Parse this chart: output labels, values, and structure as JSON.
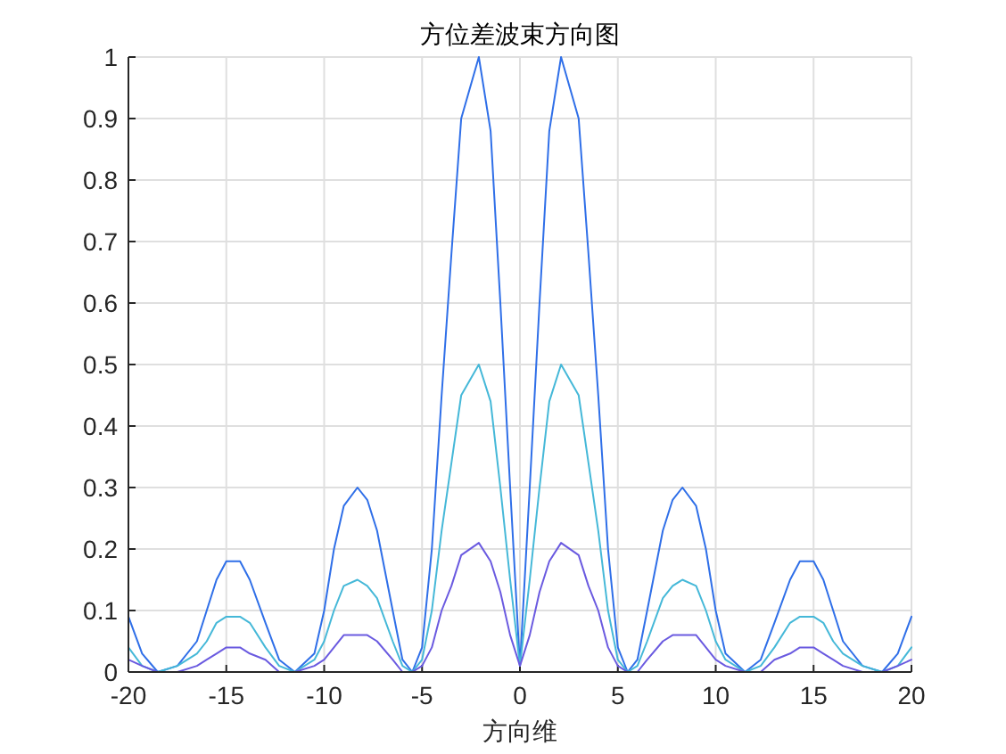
{
  "chart_data": {
    "type": "line",
    "title": "方位差波束方向图",
    "xlabel": "方向维",
    "x": [
      -20,
      -19.3,
      -18.5,
      -17.5,
      -16.5,
      -16,
      -15.5,
      -15,
      -14.3,
      -13.8,
      -13,
      -12.3,
      -11.5,
      -10.5,
      -10,
      -9.5,
      -9,
      -8.3,
      -7.8,
      -7.3,
      -6.5,
      -6,
      -5.5,
      -5,
      -4.5,
      -4,
      -3.5,
      -3,
      -2.1,
      -1.5,
      -1,
      -0.5,
      0,
      0.5,
      1,
      1.5,
      2.1,
      3,
      3.5,
      4,
      4.5,
      5,
      5.5,
      6,
      6.5,
      7.3,
      7.8,
      8.3,
      9,
      9.5,
      10,
      10.5,
      11.5,
      12.3,
      13,
      13.8,
      14.3,
      15,
      15.5,
      16,
      16.5,
      17.5,
      18.5,
      19.3,
      20
    ],
    "series": [
      {
        "color": "#2f6fe8",
        "values": [
          0.09,
          0.03,
          0,
          0.01,
          0.05,
          0.1,
          0.15,
          0.18,
          0.18,
          0.15,
          0.08,
          0.02,
          0,
          0.03,
          0.1,
          0.2,
          0.27,
          0.3,
          0.28,
          0.23,
          0.1,
          0.02,
          0,
          0.04,
          0.2,
          0.45,
          0.68,
          0.9,
          1,
          0.88,
          0.6,
          0.3,
          0.01,
          0.3,
          0.6,
          0.88,
          1,
          0.9,
          0.68,
          0.45,
          0.2,
          0.04,
          0,
          0.02,
          0.1,
          0.23,
          0.28,
          0.3,
          0.27,
          0.2,
          0.1,
          0.03,
          0,
          0.02,
          0.08,
          0.15,
          0.18,
          0.18,
          0.15,
          0.1,
          0.05,
          0.01,
          0,
          0.03,
          0.09
        ]
      },
      {
        "color": "#45b8d8",
        "values": [
          0.04,
          0.01,
          0,
          0.01,
          0.03,
          0.05,
          0.08,
          0.09,
          0.09,
          0.08,
          0.04,
          0.01,
          0,
          0.02,
          0.05,
          0.1,
          0.14,
          0.15,
          0.14,
          0.12,
          0.05,
          0.01,
          0,
          0.02,
          0.1,
          0.23,
          0.34,
          0.45,
          0.5,
          0.44,
          0.3,
          0.15,
          0.01,
          0.15,
          0.3,
          0.44,
          0.5,
          0.45,
          0.34,
          0.23,
          0.1,
          0.02,
          0,
          0.01,
          0.05,
          0.12,
          0.14,
          0.15,
          0.14,
          0.1,
          0.05,
          0.02,
          0,
          0.01,
          0.04,
          0.08,
          0.09,
          0.09,
          0.08,
          0.05,
          0.03,
          0.01,
          0,
          0.01,
          0.04
        ]
      },
      {
        "color": "#6a5ae0",
        "values": [
          0.02,
          0.01,
          0,
          0,
          0.01,
          0.02,
          0.03,
          0.04,
          0.04,
          0.03,
          0.02,
          0,
          0,
          0.01,
          0.02,
          0.04,
          0.06,
          0.06,
          0.06,
          0.05,
          0.02,
          0,
          0,
          0.01,
          0.04,
          0.1,
          0.14,
          0.19,
          0.21,
          0.18,
          0.13,
          0.06,
          0.01,
          0.06,
          0.13,
          0.18,
          0.21,
          0.19,
          0.14,
          0.1,
          0.04,
          0.01,
          0,
          0,
          0.02,
          0.05,
          0.06,
          0.06,
          0.06,
          0.04,
          0.02,
          0.01,
          0,
          0,
          0.02,
          0.03,
          0.04,
          0.04,
          0.03,
          0.02,
          0.01,
          0,
          0,
          0.01,
          0.02
        ]
      }
    ],
    "xlim": [
      -20,
      20
    ],
    "xticks": [
      -20,
      -15,
      -10,
      -5,
      0,
      5,
      10,
      15,
      20
    ],
    "ylim": [
      0,
      1
    ],
    "yticks": [
      0,
      0.1,
      0.2,
      0.3,
      0.4,
      0.5,
      0.6,
      0.7,
      0.8,
      0.9,
      1
    ],
    "grid": true,
    "marker": "none",
    "line_style": "solid"
  }
}
